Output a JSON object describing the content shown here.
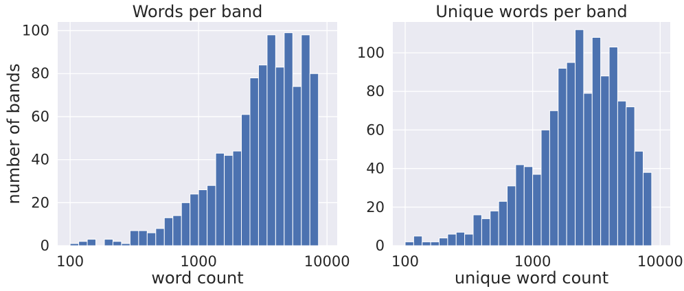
{
  "chart_data": [
    {
      "type": "bar",
      "title": "Words per band",
      "xlabel": "word count",
      "ylabel": "number of bands",
      "xscale": "log",
      "xlim": [
        80,
        12000
      ],
      "ylim": [
        0,
        104
      ],
      "x_ticks": [
        100,
        1000,
        10000
      ],
      "x_tick_labels": [
        "100",
        "1000",
        "10000"
      ],
      "y_ticks": [
        0,
        20,
        40,
        60,
        80,
        100
      ],
      "y_tick_labels": [
        "0",
        "20",
        "40",
        "60",
        "80",
        "100"
      ],
      "grid": true,
      "bar_color": "#4c72b0",
      "bin_range": [
        100,
        10000
      ],
      "bin_count": 30,
      "values": [
        1,
        2,
        3,
        0,
        3,
        2,
        1,
        7,
        7,
        6,
        8,
        13,
        14,
        20,
        24,
        26,
        28,
        43,
        42,
        44,
        61,
        78,
        84,
        98,
        83,
        99,
        74,
        98,
        80,
        0
      ]
    },
    {
      "type": "bar",
      "title": "Unique words per band",
      "xlabel": "unique word count",
      "ylabel": "",
      "xscale": "log",
      "xlim": [
        80,
        12000
      ],
      "ylim": [
        0,
        116
      ],
      "x_ticks": [
        100,
        1000,
        10000
      ],
      "x_tick_labels": [
        "100",
        "1000",
        "10000"
      ],
      "y_ticks": [
        0,
        20,
        40,
        60,
        80,
        100
      ],
      "y_tick_labels": [
        "0",
        "20",
        "40",
        "60",
        "80",
        "100"
      ],
      "grid": true,
      "bar_color": "#4c72b0",
      "bin_range": [
        100,
        10000
      ],
      "bin_count": 30,
      "values": [
        2,
        5,
        2,
        2,
        4,
        6,
        7,
        6,
        16,
        14,
        18,
        23,
        31,
        42,
        41,
        37,
        60,
        70,
        92,
        95,
        112,
        79,
        108,
        88,
        103,
        75,
        72,
        49,
        38,
        0
      ]
    }
  ]
}
